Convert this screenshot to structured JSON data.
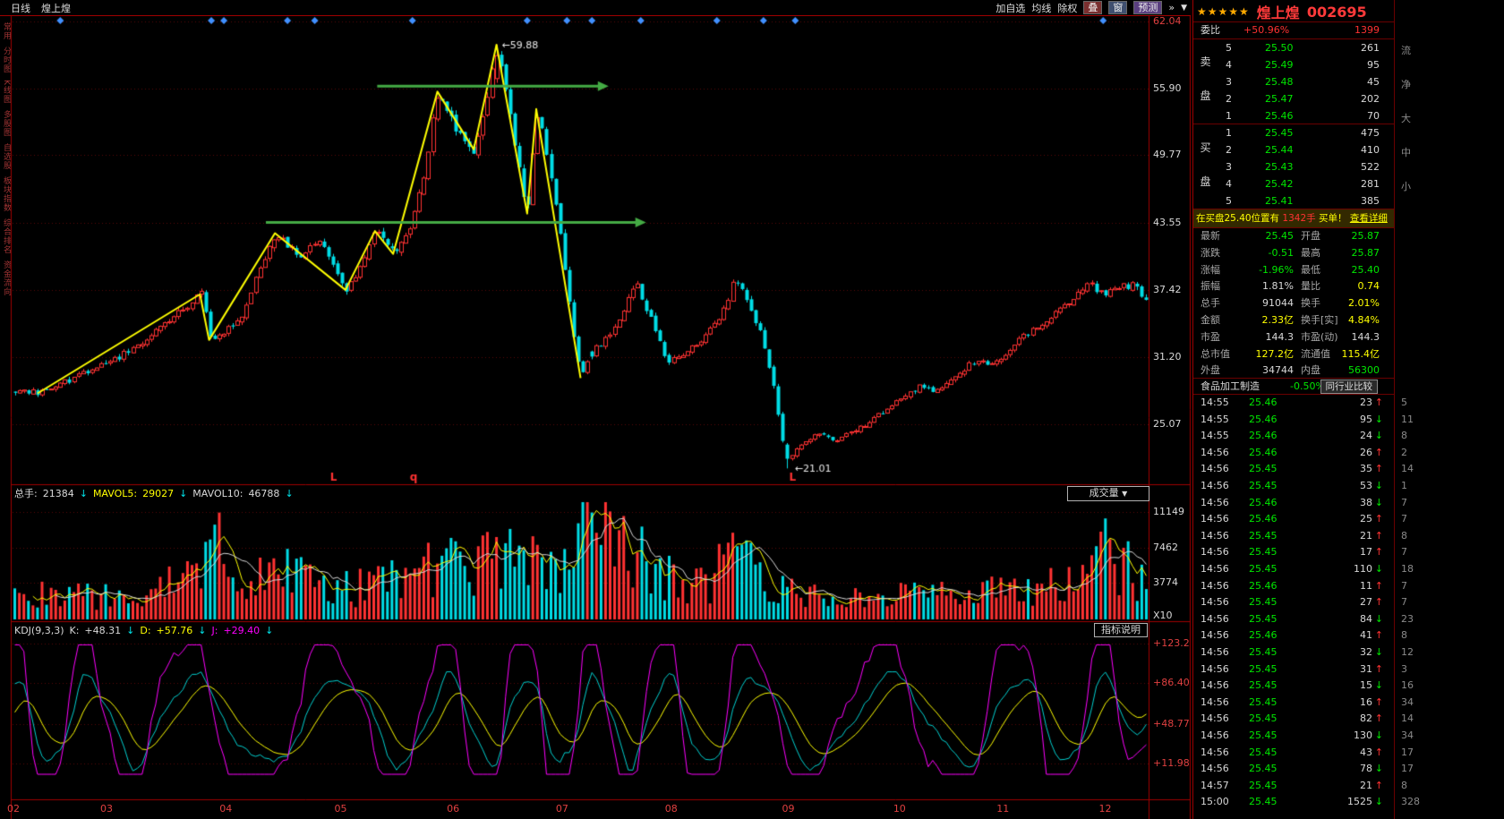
{
  "toolbar": {
    "period": "日线",
    "stock": "煌上煌",
    "add_watch": "加自选",
    "ma": "均线",
    "exright": "除权",
    "overlay": "叠",
    "window": "窗",
    "predict": "预测",
    "icons": {
      "skip_end": "»",
      "dropdown": "▼"
    }
  },
  "icons": {
    "up": "↑",
    "down": "↓",
    "dropdown": "▼"
  },
  "left_sidebar": {
    "items": [
      "常用",
      "分时图",
      "K线图",
      "多股图",
      "自选股",
      "板块指数",
      "综合排名",
      "资金流向"
    ]
  },
  "volume_pane": {
    "header": {
      "zs_label": "总手:",
      "zs": "21384",
      "m5_label": "MAVOL5:",
      "m5": "29027",
      "m10_label": "MAVOL10:",
      "m10": "46788"
    },
    "selector": "成交量",
    "x10_label": "X10"
  },
  "kdj_pane": {
    "header": {
      "title": "KDJ(9,3,3)",
      "k_label": "K:",
      "k": "+48.31",
      "d_label": "D:",
      "d": "+57.76",
      "j_label": "J:",
      "j": "+29.40"
    },
    "button": "指标说明"
  },
  "quote_panel": {
    "stars": "★★★★★",
    "name": "煌上煌",
    "code": "002695",
    "weibi": {
      "label": "委比",
      "value": "+50.96%",
      "weicha": "1399"
    },
    "sell_label": "卖盘",
    "buy_label": "买盘",
    "sell": [
      {
        "level": "5",
        "price": "25.50",
        "vol": "261"
      },
      {
        "level": "4",
        "price": "25.49",
        "vol": "95"
      },
      {
        "level": "3",
        "price": "25.48",
        "vol": "45"
      },
      {
        "level": "2",
        "price": "25.47",
        "vol": "202"
      },
      {
        "level": "1",
        "price": "25.46",
        "vol": "70"
      }
    ],
    "buy": [
      {
        "level": "1",
        "price": "25.45",
        "vol": "475"
      },
      {
        "level": "2",
        "price": "25.44",
        "vol": "410"
      },
      {
        "level": "3",
        "price": "25.43",
        "vol": "522"
      },
      {
        "level": "4",
        "price": "25.42",
        "vol": "281"
      },
      {
        "level": "5",
        "price": "25.41",
        "vol": "385"
      }
    ],
    "notice": {
      "pre": "在买盘25.40位置有",
      "strong": "1342手",
      "mid": "买单！",
      "link": "查看详细"
    },
    "stats": [
      {
        "label": "最新",
        "value": "25.45",
        "color": "g"
      },
      {
        "label": "开盘",
        "value": "25.87",
        "color": "g"
      },
      {
        "label": "涨跌",
        "value": "-0.51",
        "color": "g"
      },
      {
        "label": "最高",
        "value": "25.87",
        "color": "g"
      },
      {
        "label": "涨幅",
        "value": "-1.96%",
        "color": "g"
      },
      {
        "label": "最低",
        "value": "25.40",
        "color": "g"
      },
      {
        "label": "振幅",
        "value": "1.81%",
        "color": "w"
      },
      {
        "label": "量比",
        "value": "0.74",
        "color": "y"
      },
      {
        "label": "总手",
        "value": "91044",
        "color": "w"
      },
      {
        "label": "换手",
        "value": "2.01%",
        "color": "y"
      },
      {
        "label": "金额",
        "value": "2.33亿",
        "color": "y"
      },
      {
        "label": "换手[实]",
        "value": "4.84%",
        "color": "y"
      },
      {
        "label": "市盈",
        "value": "144.3",
        "color": "w"
      },
      {
        "label": "市盈(动)",
        "value": "144.3",
        "color": "w"
      },
      {
        "label": "总市值",
        "value": "127.2亿",
        "color": "y"
      },
      {
        "label": "流通值",
        "value": "115.4亿",
        "color": "y"
      },
      {
        "label": "外盘",
        "value": "34744",
        "color": "w"
      },
      {
        "label": "内盘",
        "value": "56300",
        "color": "g"
      }
    ],
    "industry": {
      "name": "食品加工制造",
      "change": "-0.50%",
      "button": "同行业比较"
    },
    "ticks": [
      {
        "time": "14:55",
        "price": "25.46",
        "vol": "23",
        "dir": "up",
        "count": "5"
      },
      {
        "time": "14:55",
        "price": "25.46",
        "vol": "95",
        "dir": "down",
        "count": "11"
      },
      {
        "time": "14:55",
        "price": "25.46",
        "vol": "24",
        "dir": "down",
        "count": "8"
      },
      {
        "time": "14:56",
        "price": "25.46",
        "vol": "26",
        "dir": "up",
        "count": "2"
      },
      {
        "time": "14:56",
        "price": "25.45",
        "vol": "35",
        "dir": "up",
        "count": "14"
      },
      {
        "time": "14:56",
        "price": "25.45",
        "vol": "53",
        "dir": "down",
        "count": "1"
      },
      {
        "time": "14:56",
        "price": "25.46",
        "vol": "38",
        "dir": "down",
        "count": "7"
      },
      {
        "time": "14:56",
        "price": "25.46",
        "vol": "25",
        "dir": "up",
        "count": "7"
      },
      {
        "time": "14:56",
        "price": "25.45",
        "vol": "21",
        "dir": "up",
        "count": "8"
      },
      {
        "time": "14:56",
        "price": "25.45",
        "vol": "17",
        "dir": "up",
        "count": "7"
      },
      {
        "time": "14:56",
        "price": "25.45",
        "vol": "110",
        "dir": "down",
        "count": "18"
      },
      {
        "time": "14:56",
        "price": "25.46",
        "vol": "11",
        "dir": "up",
        "count": "7"
      },
      {
        "time": "14:56",
        "price": "25.45",
        "vol": "27",
        "dir": "up",
        "count": "7"
      },
      {
        "time": "14:56",
        "price": "25.45",
        "vol": "84",
        "dir": "down",
        "count": "23"
      },
      {
        "time": "14:56",
        "price": "25.46",
        "vol": "41",
        "dir": "up",
        "count": "8"
      },
      {
        "time": "14:56",
        "price": "25.45",
        "vol": "32",
        "dir": "down",
        "count": "12"
      },
      {
        "time": "14:56",
        "price": "25.45",
        "vol": "31",
        "dir": "up",
        "count": "3"
      },
      {
        "time": "14:56",
        "price": "25.45",
        "vol": "15",
        "dir": "down",
        "count": "16"
      },
      {
        "time": "14:56",
        "price": "25.45",
        "vol": "16",
        "dir": "up",
        "count": "34"
      },
      {
        "time": "14:56",
        "price": "25.45",
        "vol": "82",
        "dir": "up",
        "count": "14"
      },
      {
        "time": "14:56",
        "price": "25.45",
        "vol": "130",
        "dir": "down",
        "count": "34"
      },
      {
        "time": "14:56",
        "price": "25.45",
        "vol": "43",
        "dir": "up",
        "count": "17"
      },
      {
        "time": "14:56",
        "price": "25.45",
        "vol": "78",
        "dir": "down",
        "count": "17"
      },
      {
        "time": "14:57",
        "price": "25.45",
        "vol": "21",
        "dir": "up",
        "count": "8"
      },
      {
        "time": "15:00",
        "price": "25.45",
        "vol": "1525",
        "dir": "down",
        "count": "328"
      }
    ],
    "edge_chars": [
      "流",
      "净",
      "大",
      "中",
      "小"
    ]
  },
  "colors": {
    "up": "#ff3232",
    "down": "#00dde6",
    "yellow": "#ffff00",
    "white": "#d8d8d8",
    "green": "#00e600",
    "green_arrow": "#44aa44",
    "grid": "#5a0a0a",
    "frame": "#a00000",
    "diamond": "#4090ff",
    "magenta": "#ff00ff",
    "kdj_k": "#00d0d0",
    "axis_red": "#e04040"
  },
  "chart_data": {
    "type": "candlestick+volume+kdj",
    "title": "煌上煌 002695 日线",
    "n_candles": 250,
    "price_axis": [
      {
        "label": "62.04",
        "v": 62.04,
        "red": true
      },
      {
        "label": "55.90",
        "v": 55.9
      },
      {
        "label": "49.77",
        "v": 49.77
      },
      {
        "label": "43.55",
        "v": 43.55
      },
      {
        "label": "37.42",
        "v": 37.42
      },
      {
        "label": "31.20",
        "v": 31.2
      },
      {
        "label": "25.07",
        "v": 25.07
      }
    ],
    "vol_axis": [
      {
        "label": "11149",
        "v": 11149
      },
      {
        "label": "7462",
        "v": 7462
      },
      {
        "label": "3774",
        "v": 3774
      }
    ],
    "kdj_axis": [
      {
        "label": "+123.2",
        "v": 123.2
      },
      {
        "label": "+86.40",
        "v": 86.4
      },
      {
        "label": "+48.77",
        "v": 48.77
      },
      {
        "label": "+11.98",
        "v": 11.98
      }
    ],
    "months": [
      {
        "label": "02",
        "f": 0.0
      },
      {
        "label": "03",
        "f": 0.082
      },
      {
        "label": "04",
        "f": 0.187
      },
      {
        "label": "05",
        "f": 0.288
      },
      {
        "label": "06",
        "f": 0.387
      },
      {
        "label": "07",
        "f": 0.483
      },
      {
        "label": "08",
        "f": 0.579
      },
      {
        "label": "09",
        "f": 0.682
      },
      {
        "label": "10",
        "f": 0.78
      },
      {
        "label": "11",
        "f": 0.871
      },
      {
        "label": "12",
        "f": 0.961
      }
    ],
    "price_anchors": [
      [
        0,
        28.2
      ],
      [
        0.022,
        27.9
      ],
      [
        0.05,
        29.2
      ],
      [
        0.09,
        31.0
      ],
      [
        0.13,
        34.0
      ],
      [
        0.165,
        37.0
      ],
      [
        0.173,
        32.8
      ],
      [
        0.2,
        34.5
      ],
      [
        0.215,
        39.0
      ],
      [
        0.231,
        42.6
      ],
      [
        0.25,
        40.5
      ],
      [
        0.27,
        41.8
      ],
      [
        0.293,
        37.4
      ],
      [
        0.305,
        39.5
      ],
      [
        0.319,
        42.8
      ],
      [
        0.335,
        40.7
      ],
      [
        0.35,
        43.5
      ],
      [
        0.36,
        47.0
      ],
      [
        0.374,
        55.6
      ],
      [
        0.39,
        52.0
      ],
      [
        0.406,
        50.3
      ],
      [
        0.415,
        53.5
      ],
      [
        0.426,
        59.88
      ],
      [
        0.44,
        52.0
      ],
      [
        0.453,
        44.4
      ],
      [
        0.461,
        54.0
      ],
      [
        0.47,
        50.0
      ],
      [
        0.48,
        44.0
      ],
      [
        0.49,
        36.0
      ],
      [
        0.5,
        29.3
      ],
      [
        0.51,
        31.5
      ],
      [
        0.53,
        34.0
      ],
      [
        0.549,
        38.0
      ],
      [
        0.563,
        34.5
      ],
      [
        0.577,
        30.8
      ],
      [
        0.59,
        31.5
      ],
      [
        0.61,
        33.0
      ],
      [
        0.625,
        35.0
      ],
      [
        0.636,
        38.4
      ],
      [
        0.648,
        36.5
      ],
      [
        0.66,
        33.0
      ],
      [
        0.67,
        29.0
      ],
      [
        0.676,
        25.0
      ],
      [
        0.683,
        21.6
      ],
      [
        0.695,
        23.2
      ],
      [
        0.71,
        24.2
      ],
      [
        0.725,
        23.6
      ],
      [
        0.74,
        24.4
      ],
      [
        0.755,
        25.2
      ],
      [
        0.77,
        26.5
      ],
      [
        0.785,
        27.5
      ],
      [
        0.8,
        28.5
      ],
      [
        0.815,
        28.0
      ],
      [
        0.83,
        29.5
      ],
      [
        0.85,
        31.0
      ],
      [
        0.865,
        30.5
      ],
      [
        0.88,
        32.0
      ],
      [
        0.9,
        33.8
      ],
      [
        0.92,
        35.2
      ],
      [
        0.935,
        36.6
      ],
      [
        0.95,
        38.0
      ],
      [
        0.962,
        37.0
      ],
      [
        0.975,
        37.6
      ],
      [
        0.99,
        37.8
      ],
      [
        1.0,
        36.5
      ]
    ],
    "volume_anchors": [
      [
        0,
        2600
      ],
      [
        0.08,
        2300
      ],
      [
        0.13,
        3200
      ],
      [
        0.165,
        4800
      ],
      [
        0.173,
        8300
      ],
      [
        0.2,
        4400
      ],
      [
        0.231,
        5200
      ],
      [
        0.27,
        3600
      ],
      [
        0.3,
        3000
      ],
      [
        0.319,
        4600
      ],
      [
        0.35,
        4200
      ],
      [
        0.374,
        5800
      ],
      [
        0.4,
        5000
      ],
      [
        0.426,
        6600
      ],
      [
        0.45,
        5200
      ],
      [
        0.47,
        6000
      ],
      [
        0.49,
        5400
      ],
      [
        0.512,
        11100
      ],
      [
        0.53,
        6800
      ],
      [
        0.549,
        7400
      ],
      [
        0.577,
        4600
      ],
      [
        0.6,
        3400
      ],
      [
        0.62,
        4400
      ],
      [
        0.636,
        9000
      ],
      [
        0.648,
        7800
      ],
      [
        0.67,
        4000
      ],
      [
        0.683,
        3000
      ],
      [
        0.71,
        2400
      ],
      [
        0.74,
        2000
      ],
      [
        0.77,
        2300
      ],
      [
        0.8,
        2600
      ],
      [
        0.83,
        2400
      ],
      [
        0.86,
        2800
      ],
      [
        0.89,
        3200
      ],
      [
        0.92,
        3800
      ],
      [
        0.945,
        6200
      ],
      [
        0.955,
        7600
      ],
      [
        0.97,
        6400
      ],
      [
        0.985,
        5400
      ],
      [
        1,
        3800
      ]
    ],
    "volume_spikes": [
      [
        0.173,
        8300
      ],
      [
        0.374,
        5800
      ],
      [
        0.512,
        11100
      ],
      [
        0.636,
        9000
      ],
      [
        0.648,
        8200
      ],
      [
        0.955,
        7600
      ]
    ],
    "forced": {
      "peak_f": 0.426,
      "peak": 59.88,
      "trough_f": 0.683,
      "trough": 21.01,
      "down_spike_f": 0.512
    },
    "yellow_line": [
      [
        0.022,
        27.9
      ],
      [
        0.165,
        37.0
      ],
      [
        0.173,
        32.8
      ],
      [
        0.231,
        42.6
      ],
      [
        0.293,
        37.4
      ],
      [
        0.319,
        42.8
      ],
      [
        0.335,
        40.7
      ],
      [
        0.374,
        55.6
      ],
      [
        0.406,
        50.3
      ],
      [
        0.426,
        59.9
      ],
      [
        0.453,
        44.4
      ],
      [
        0.461,
        54.0
      ],
      [
        0.5,
        29.3
      ]
    ],
    "green_arrows": [
      {
        "x1": 0.321,
        "x2": 0.516,
        "price": 56.1
      },
      {
        "x1": 0.223,
        "x2": 0.549,
        "price": 43.6
      }
    ],
    "diamonds": [
      0.042,
      0.175,
      0.186,
      0.242,
      0.266,
      0.352,
      0.453,
      0.488,
      0.51,
      0.553,
      0.62,
      0.661,
      0.689,
      0.96
    ],
    "annotations": {
      "peak": "←59.88",
      "trough": "←21.01",
      "letters": [
        {
          "t": "L",
          "f": 0.282
        },
        {
          "t": "q",
          "f": 0.352
        },
        {
          "t": "L",
          "f": 0.686
        }
      ]
    },
    "kdj_end": {
      "k": 48.31,
      "d": 57.76,
      "j": 29.4
    }
  }
}
